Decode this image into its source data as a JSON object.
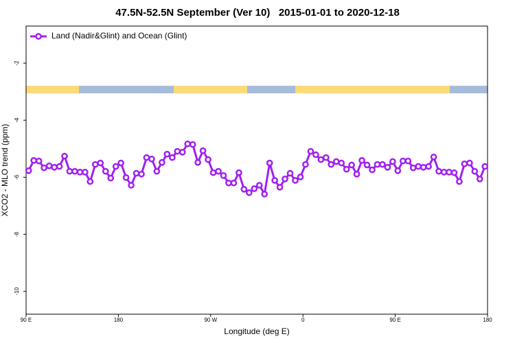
{
  "chart_data": {
    "type": "line",
    "title": "47.5N-52.5N September (Ver 10)   2015-01-01 to 2020-12-18",
    "x_label": "Longitude (deg E)",
    "y_label": "XCO2 - MLO trend (ppm)",
    "xlim": [
      90,
      540
    ],
    "ylim": [
      -10.8,
      -0.7
    ],
    "xticks": [
      {
        "value": 90,
        "label": "90 E"
      },
      180,
      {
        "value": 270,
        "label": "90 W"
      },
      {
        "value": 360,
        "label": "0"
      },
      {
        "value": 450,
        "label": "90 E"
      },
      {
        "value": 540,
        "label": "180"
      }
    ],
    "yticks": [
      -2,
      -4,
      -6,
      -8,
      -10
    ],
    "x": [
      92.5,
      97.5,
      102.5,
      107.5,
      112.5,
      117.5,
      122.5,
      127.5,
      132.5,
      137.5,
      142.5,
      147.5,
      152.5,
      157.5,
      162.5,
      167.5,
      172.5,
      177.5,
      182.5,
      187.5,
      192.5,
      197.5,
      202.5,
      207.5,
      212.5,
      217.5,
      222.5,
      227.5,
      232.5,
      237.5,
      242.5,
      247.5,
      252.5,
      257.5,
      262.5,
      267.5,
      272.5,
      277.5,
      282.5,
      287.5,
      292.5,
      297.5,
      302.5,
      307.5,
      312.5,
      317.5,
      322.5,
      327.5,
      332.5,
      337.5,
      342.5,
      347.5,
      352.5,
      357.5,
      362.5,
      367.5,
      372.5,
      377.5,
      382.5,
      387.5,
      392.5,
      397.5,
      402.5,
      407.5,
      412.5,
      417.5,
      422.5,
      427.5,
      432.5,
      437.5,
      442.5,
      447.5,
      452.5,
      457.5,
      462.5,
      467.5,
      472.5,
      477.5,
      482.5,
      487.5,
      492.5,
      497.5,
      502.5,
      507.5,
      512.5,
      517.5,
      522.5,
      527.5,
      532.5,
      537.5
    ],
    "series": [
      {
        "name": "Land (Nadir&Glint) and Ocean (Glint)",
        "color": "#a020f0",
        "values": [
          -5.77,
          -5.41,
          -5.43,
          -5.67,
          -5.6,
          -5.65,
          -5.62,
          -5.26,
          -5.79,
          -5.79,
          -5.82,
          -5.82,
          -6.15,
          -5.55,
          -5.5,
          -5.79,
          -6.03,
          -5.62,
          -5.5,
          -6.01,
          -6.28,
          -5.86,
          -5.89,
          -5.31,
          -5.36,
          -5.79,
          -5.48,
          -5.19,
          -5.31,
          -5.09,
          -5.12,
          -4.83,
          -4.85,
          -5.48,
          -5.07,
          -5.38,
          -5.84,
          -5.79,
          -5.94,
          -6.2,
          -6.2,
          -5.84,
          -6.42,
          -6.54,
          -6.4,
          -6.28,
          -6.59,
          -5.5,
          -6.11,
          -6.35,
          -6.06,
          -5.86,
          -6.11,
          -5.99,
          -5.55,
          -5.09,
          -5.21,
          -5.38,
          -5.31,
          -5.55,
          -5.45,
          -5.5,
          -5.72,
          -5.57,
          -5.89,
          -5.41,
          -5.57,
          -5.74,
          -5.55,
          -5.55,
          -5.65,
          -5.45,
          -5.77,
          -5.43,
          -5.43,
          -5.67,
          -5.62,
          -5.65,
          -5.62,
          -5.29,
          -5.79,
          -5.82,
          -5.82,
          -5.84,
          -6.15,
          -5.53,
          -5.5,
          -5.79,
          -6.06,
          -5.62
        ]
      }
    ],
    "legend": "top-left"
  }
}
